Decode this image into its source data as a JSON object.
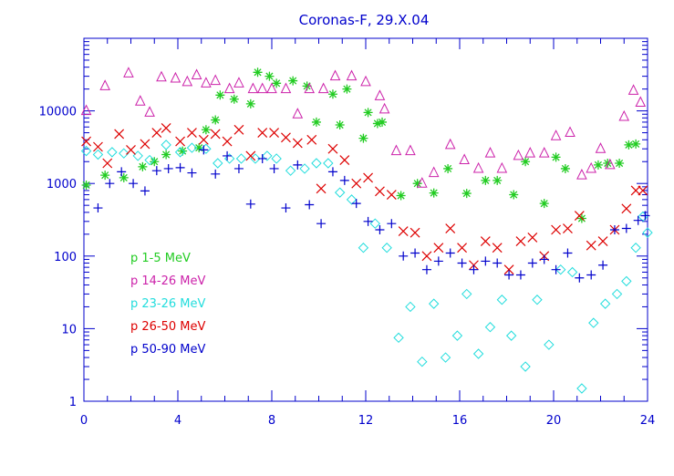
{
  "chart_data": {
    "type": "scatter",
    "title": "Coronas-F, 29.X.04",
    "xlabel": "",
    "ylabel": "",
    "xlim": [
      0,
      24
    ],
    "ylim": [
      1,
      100000
    ],
    "yscale": "log",
    "grid": false,
    "legend_placement": "bottom-left inside",
    "axis_color": "#0000cc",
    "x_ticks": [
      0,
      4,
      8,
      12,
      16,
      20,
      24
    ],
    "x_tick_labels": [
      "0",
      "4",
      "8",
      "12",
      "16",
      "20",
      "24"
    ],
    "y_ticks": [
      1,
      10,
      100,
      1000,
      10000
    ],
    "y_tick_labels": [
      "1",
      "10",
      "100",
      "1000",
      "10000"
    ],
    "series": [
      {
        "name": "p 1-5 MeV",
        "marker": "asterisk",
        "color": "#22cc22",
        "points": [
          [
            0.1,
            950
          ],
          [
            0.9,
            1300
          ],
          [
            1.7,
            1200
          ],
          [
            2.5,
            1700
          ],
          [
            3.0,
            2000
          ],
          [
            3.5,
            2500
          ],
          [
            4.2,
            2800
          ],
          [
            4.9,
            3100
          ],
          [
            5.2,
            5500
          ],
          [
            5.6,
            7500
          ],
          [
            5.8,
            16500
          ],
          [
            6.4,
            14500
          ],
          [
            7.1,
            12500
          ],
          [
            7.4,
            34000
          ],
          [
            7.9,
            30000
          ],
          [
            8.2,
            24000
          ],
          [
            8.9,
            26000
          ],
          [
            9.5,
            22000
          ],
          [
            9.9,
            7000
          ],
          [
            10.6,
            17000
          ],
          [
            10.9,
            6400
          ],
          [
            11.2,
            20000
          ],
          [
            11.9,
            4200
          ],
          [
            12.1,
            9500
          ],
          [
            12.5,
            6700
          ],
          [
            12.7,
            7000
          ],
          [
            13.5,
            680
          ],
          [
            14.2,
            1000
          ],
          [
            14.9,
            740
          ],
          [
            15.5,
            1600
          ],
          [
            16.3,
            730
          ],
          [
            17.1,
            1100
          ],
          [
            17.6,
            1100
          ],
          [
            18.3,
            700
          ],
          [
            18.8,
            2000
          ],
          [
            19.6,
            530
          ],
          [
            20.1,
            2300
          ],
          [
            20.5,
            1600
          ],
          [
            21.2,
            330
          ],
          [
            21.9,
            1800
          ],
          [
            22.3,
            1900
          ],
          [
            22.8,
            1900
          ],
          [
            23.2,
            3400
          ],
          [
            23.5,
            3500
          ]
        ]
      },
      {
        "name": "p 14-26 MeV",
        "marker": "triangle",
        "color": "#cc22aa",
        "points": [
          [
            0.1,
            10000
          ],
          [
            0.9,
            22000
          ],
          [
            1.9,
            33000
          ],
          [
            2.4,
            13500
          ],
          [
            2.8,
            9500
          ],
          [
            3.3,
            29000
          ],
          [
            3.9,
            28000
          ],
          [
            4.4,
            25000
          ],
          [
            4.8,
            31000
          ],
          [
            5.2,
            24000
          ],
          [
            5.6,
            26000
          ],
          [
            6.2,
            20000
          ],
          [
            6.6,
            24000
          ],
          [
            7.2,
            20000
          ],
          [
            7.6,
            20000
          ],
          [
            8.0,
            20000
          ],
          [
            8.6,
            20000
          ],
          [
            9.1,
            9000
          ],
          [
            9.6,
            20000
          ],
          [
            10.2,
            20000
          ],
          [
            10.7,
            30000
          ],
          [
            11.4,
            30000
          ],
          [
            12.0,
            25000
          ],
          [
            12.6,
            16000
          ],
          [
            12.8,
            10500
          ],
          [
            13.3,
            2800
          ],
          [
            13.9,
            2800
          ],
          [
            14.4,
            1000
          ],
          [
            14.9,
            1400
          ],
          [
            15.6,
            3400
          ],
          [
            16.2,
            2100
          ],
          [
            16.8,
            1600
          ],
          [
            17.3,
            2600
          ],
          [
            17.8,
            1600
          ],
          [
            18.5,
            2400
          ],
          [
            19.0,
            2600
          ],
          [
            19.6,
            2600
          ],
          [
            20.1,
            4500
          ],
          [
            20.7,
            5000
          ],
          [
            21.2,
            1300
          ],
          [
            21.6,
            1600
          ],
          [
            22.0,
            3000
          ],
          [
            22.4,
            1800
          ],
          [
            23.0,
            8300
          ],
          [
            23.4,
            19000
          ],
          [
            23.7,
            13000
          ]
        ]
      },
      {
        "name": "p 23-26 MeV",
        "marker": "diamond",
        "color": "#22dddd",
        "points": [
          [
            0.1,
            2800
          ],
          [
            0.6,
            2500
          ],
          [
            1.2,
            2700
          ],
          [
            1.7,
            2600
          ],
          [
            2.3,
            2400
          ],
          [
            2.8,
            2100
          ],
          [
            3.5,
            3400
          ],
          [
            4.1,
            2700
          ],
          [
            4.6,
            3100
          ],
          [
            5.2,
            3000
          ],
          [
            5.7,
            1900
          ],
          [
            6.2,
            2200
          ],
          [
            6.7,
            2200
          ],
          [
            7.3,
            2200
          ],
          [
            7.8,
            2400
          ],
          [
            8.2,
            2200
          ],
          [
            8.8,
            1500
          ],
          [
            9.4,
            1600
          ],
          [
            9.9,
            1900
          ],
          [
            10.4,
            1900
          ],
          [
            10.9,
            750
          ],
          [
            11.4,
            600
          ],
          [
            11.9,
            130
          ],
          [
            12.4,
            280
          ],
          [
            12.9,
            130
          ],
          [
            13.4,
            7.5
          ],
          [
            13.9,
            20
          ],
          [
            14.4,
            3.5
          ],
          [
            14.9,
            22
          ],
          [
            15.4,
            4
          ],
          [
            15.9,
            8
          ],
          [
            16.3,
            30
          ],
          [
            16.8,
            4.5
          ],
          [
            17.3,
            10.5
          ],
          [
            17.8,
            25
          ],
          [
            18.2,
            8
          ],
          [
            18.8,
            3
          ],
          [
            19.3,
            25
          ],
          [
            19.8,
            6
          ],
          [
            20.3,
            65
          ],
          [
            20.8,
            60
          ],
          [
            21.2,
            1.5
          ],
          [
            21.7,
            12
          ],
          [
            22.2,
            22
          ],
          [
            22.7,
            30
          ],
          [
            23.1,
            45
          ],
          [
            23.5,
            130
          ],
          [
            23.8,
            350
          ],
          [
            24.0,
            210
          ]
        ]
      },
      {
        "name": "p 26-50 MeV",
        "marker": "cross",
        "color": "#dd0000",
        "points": [
          [
            0.1,
            3800
          ],
          [
            0.6,
            3200
          ],
          [
            1.0,
            1900
          ],
          [
            1.5,
            4800
          ],
          [
            2.0,
            2900
          ],
          [
            2.6,
            3500
          ],
          [
            3.1,
            5000
          ],
          [
            3.5,
            5800
          ],
          [
            4.1,
            3800
          ],
          [
            4.6,
            5000
          ],
          [
            5.1,
            4000
          ],
          [
            5.6,
            4800
          ],
          [
            6.1,
            3800
          ],
          [
            6.6,
            5500
          ],
          [
            7.1,
            2400
          ],
          [
            7.6,
            5000
          ],
          [
            8.1,
            5000
          ],
          [
            8.6,
            4300
          ],
          [
            9.1,
            3600
          ],
          [
            9.7,
            4000
          ],
          [
            10.1,
            850
          ],
          [
            10.6,
            3000
          ],
          [
            11.1,
            2100
          ],
          [
            11.6,
            1000
          ],
          [
            12.1,
            1200
          ],
          [
            12.6,
            780
          ],
          [
            13.1,
            700
          ],
          [
            13.6,
            220
          ],
          [
            14.1,
            210
          ],
          [
            14.6,
            100
          ],
          [
            15.1,
            130
          ],
          [
            15.6,
            240
          ],
          [
            16.1,
            130
          ],
          [
            16.6,
            75
          ],
          [
            17.1,
            160
          ],
          [
            17.6,
            130
          ],
          [
            18.1,
            65
          ],
          [
            18.6,
            160
          ],
          [
            19.1,
            180
          ],
          [
            19.6,
            100
          ],
          [
            20.1,
            230
          ],
          [
            20.6,
            240
          ],
          [
            21.1,
            360
          ],
          [
            21.6,
            140
          ],
          [
            22.1,
            160
          ],
          [
            22.6,
            230
          ],
          [
            23.1,
            450
          ],
          [
            23.5,
            800
          ],
          [
            23.8,
            800
          ]
        ]
      },
      {
        "name": "p 50-90 MeV",
        "marker": "plus",
        "color": "#0000cc",
        "points": [
          [
            0.6,
            460
          ],
          [
            1.1,
            1000
          ],
          [
            1.6,
            1450
          ],
          [
            2.1,
            1000
          ],
          [
            2.6,
            790
          ],
          [
            3.1,
            1500
          ],
          [
            3.6,
            1600
          ],
          [
            4.1,
            1650
          ],
          [
            4.6,
            1400
          ],
          [
            5.1,
            2900
          ],
          [
            5.6,
            1350
          ],
          [
            6.1,
            2400
          ],
          [
            6.6,
            1600
          ],
          [
            7.1,
            520
          ],
          [
            7.6,
            2200
          ],
          [
            8.1,
            1600
          ],
          [
            8.6,
            460
          ],
          [
            9.1,
            1800
          ],
          [
            9.6,
            510
          ],
          [
            10.1,
            280
          ],
          [
            10.6,
            1450
          ],
          [
            11.1,
            1100
          ],
          [
            11.6,
            530
          ],
          [
            12.1,
            300
          ],
          [
            12.6,
            230
          ],
          [
            13.1,
            280
          ],
          [
            13.6,
            100
          ],
          [
            14.1,
            110
          ],
          [
            14.6,
            65
          ],
          [
            15.1,
            85
          ],
          [
            15.6,
            110
          ],
          [
            16.1,
            80
          ],
          [
            16.6,
            65
          ],
          [
            17.1,
            85
          ],
          [
            17.6,
            80
          ],
          [
            18.1,
            55
          ],
          [
            18.6,
            55
          ],
          [
            19.1,
            80
          ],
          [
            19.6,
            90
          ],
          [
            20.1,
            65
          ],
          [
            20.6,
            110
          ],
          [
            21.1,
            50
          ],
          [
            21.6,
            55
          ],
          [
            22.1,
            75
          ],
          [
            22.6,
            230
          ],
          [
            23.1,
            240
          ],
          [
            23.6,
            310
          ],
          [
            23.9,
            360
          ]
        ]
      }
    ]
  }
}
